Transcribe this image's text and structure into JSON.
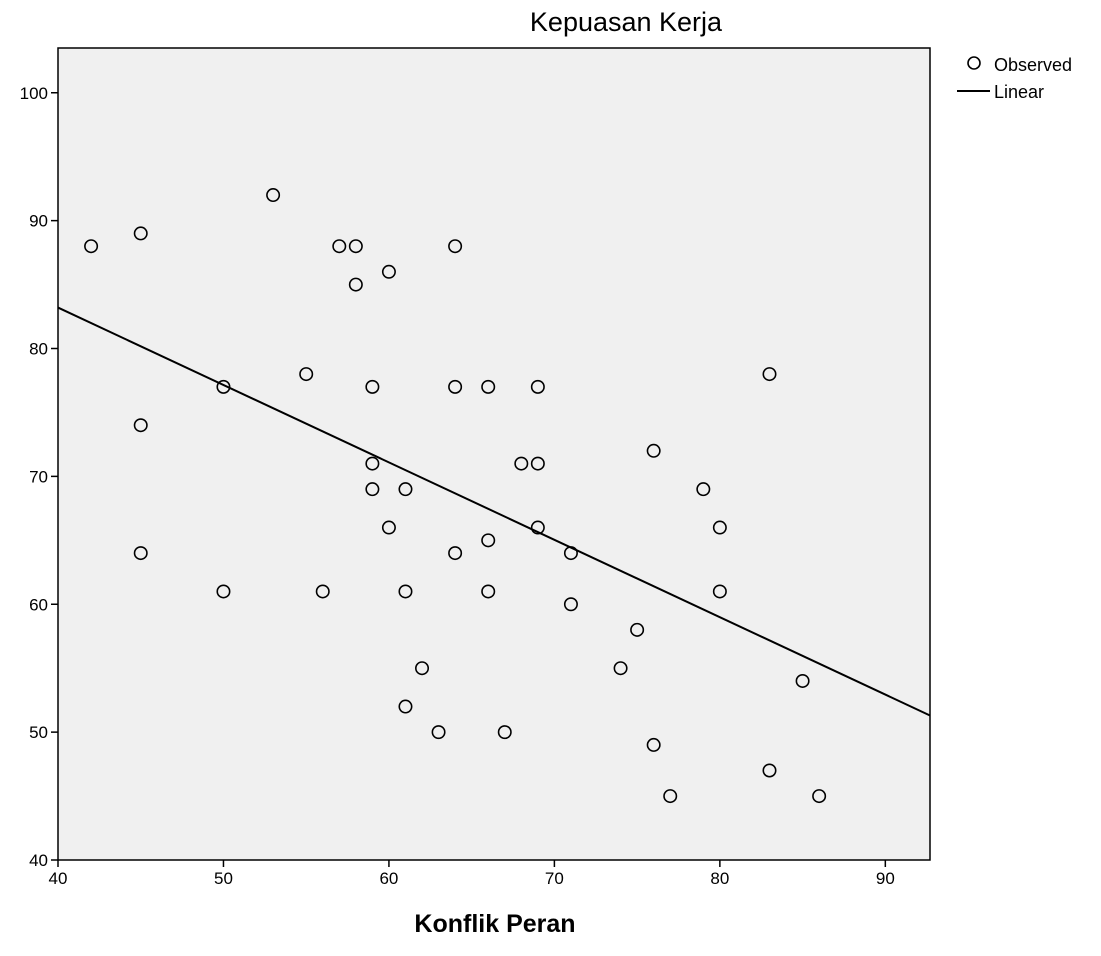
{
  "chart_data": {
    "type": "scatter",
    "title": "Kepuasan Kerja",
    "xlabel": "Konflik Peran",
    "ylabel": "",
    "xlim": [
      40,
      92.7
    ],
    "ylim": [
      40,
      103.5
    ],
    "xticks": [
      40,
      50,
      60,
      70,
      80,
      90
    ],
    "yticks": [
      40,
      50,
      60,
      70,
      80,
      90,
      100
    ],
    "grid": false,
    "legend_position": "top-right, outside plot",
    "colors": {
      "plot_background": "#f0f0f0",
      "marker": "#000000",
      "line": "#000000",
      "page": "#ffffff"
    },
    "series": [
      {
        "name": "Observed",
        "kind": "scatter",
        "x": [
          42,
          45,
          45,
          45,
          50,
          50,
          53,
          55,
          56,
          57,
          58,
          58,
          59,
          59,
          59,
          60,
          60,
          61,
          61,
          61,
          62,
          63,
          64,
          64,
          64,
          66,
          66,
          66,
          67,
          68,
          69,
          69,
          69,
          71,
          71,
          74,
          75,
          76,
          76,
          77,
          79,
          80,
          80,
          83,
          83,
          85,
          86
        ],
        "y": [
          88,
          89,
          74,
          64,
          77,
          61,
          92,
          78,
          61,
          88,
          88,
          85,
          77,
          71,
          69,
          86,
          66,
          69,
          61,
          52,
          55,
          50,
          88,
          77,
          64,
          77,
          65,
          61,
          50,
          71,
          77,
          71,
          66,
          64,
          60,
          55,
          58,
          72,
          49,
          45,
          69,
          66,
          61,
          78,
          47,
          54,
          45
        ]
      },
      {
        "name": "Linear",
        "kind": "line",
        "x": [
          40,
          92.7
        ],
        "y": [
          83.2,
          51.3
        ]
      }
    ]
  }
}
